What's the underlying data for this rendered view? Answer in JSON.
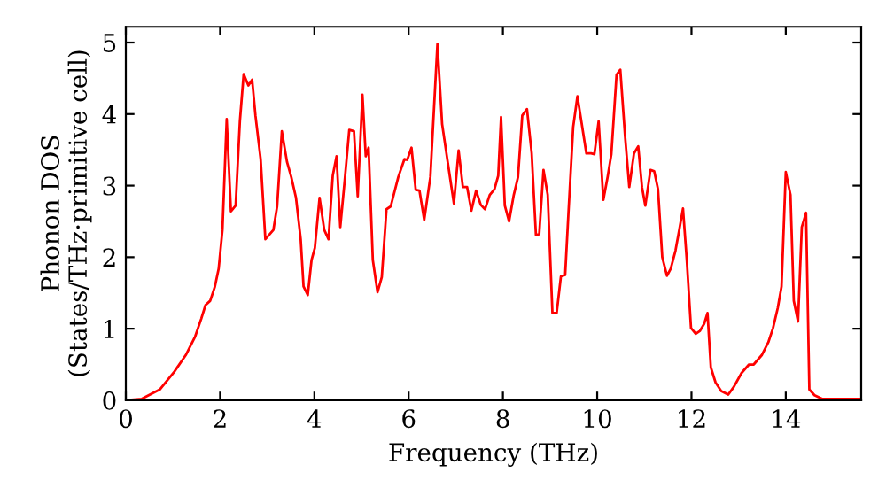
{
  "chart_data": {
    "type": "line",
    "xlabel": "Frequency (THz)",
    "ylabel": "Phonon DOS\n(States/THz·primitive cell)",
    "xlim": [
      0,
      15.6
    ],
    "ylim": [
      0,
      5.22
    ],
    "xticks": [
      0,
      2,
      4,
      6,
      8,
      10,
      12,
      14
    ],
    "yticks": [
      0,
      1,
      2,
      3,
      4,
      5
    ],
    "grid": false,
    "marker": "none",
    "line_style": "solid",
    "series": [
      {
        "color": "#ff0000",
        "x": [
          0,
          0.34,
          0.72,
          1.03,
          1.28,
          1.47,
          1.6,
          1.69,
          1.79,
          1.89,
          1.97,
          2.05,
          2.14,
          2.23,
          2.33,
          2.42,
          2.5,
          2.6,
          2.68,
          2.75,
          2.86,
          2.96,
          3.13,
          3.21,
          3.31,
          3.42,
          3.51,
          3.61,
          3.71,
          3.77,
          3.86,
          3.94,
          4.01,
          4.11,
          4.21,
          4.3,
          4.39,
          4.47,
          4.55,
          4.65,
          4.74,
          4.84,
          4.92,
          5.02,
          5.09,
          5.15,
          5.24,
          5.34,
          5.43,
          5.53,
          5.62,
          5.78,
          5.91,
          5.97,
          6.06,
          6.15,
          6.23,
          6.33,
          6.46,
          6.61,
          6.71,
          6.84,
          6.96,
          7.06,
          7.15,
          7.24,
          7.33,
          7.43,
          7.53,
          7.62,
          7.72,
          7.82,
          7.9,
          7.96,
          8.04,
          8.13,
          8.23,
          8.32,
          8.41,
          8.51,
          8.61,
          8.7,
          8.77,
          8.86,
          8.95,
          9.05,
          9.14,
          9.23,
          9.32,
          9.39,
          9.49,
          9.58,
          9.67,
          9.77,
          9.87,
          9.94,
          10.03,
          10.13,
          10.22,
          10.3,
          10.41,
          10.49,
          10.59,
          10.68,
          10.78,
          10.87,
          10.95,
          11.02,
          11.13,
          11.21,
          11.29,
          11.38,
          11.48,
          11.56,
          11.66,
          11.74,
          11.82,
          11.9,
          11.99,
          12.09,
          12.18,
          12.27,
          12.34,
          12.41,
          12.51,
          12.63,
          12.78,
          12.9,
          13.06,
          13.22,
          13.32,
          13.49,
          13.63,
          13.73,
          13.83,
          13.91,
          14.0,
          14.1,
          14.17,
          14.26,
          14.34,
          14.43,
          14.5,
          14.61,
          14.77,
          15.58
        ],
        "values": [
          0,
          0.02,
          0.15,
          0.4,
          0.64,
          0.89,
          1.14,
          1.33,
          1.39,
          1.59,
          1.84,
          2.38,
          3.93,
          2.64,
          2.72,
          3.9,
          4.56,
          4.4,
          4.48,
          3.98,
          3.37,
          2.25,
          2.38,
          2.71,
          3.76,
          3.33,
          3.12,
          2.83,
          2.25,
          1.59,
          1.47,
          1.96,
          2.13,
          2.83,
          2.38,
          2.25,
          3.14,
          3.41,
          2.42,
          3.12,
          3.78,
          3.76,
          2.85,
          4.27,
          3.41,
          3.53,
          1.96,
          1.51,
          1.72,
          2.67,
          2.71,
          3.12,
          3.37,
          3.36,
          3.53,
          2.94,
          2.93,
          2.52,
          3.12,
          4.98,
          3.86,
          3.28,
          2.75,
          3.49,
          2.98,
          2.98,
          2.65,
          2.93,
          2.73,
          2.67,
          2.87,
          2.95,
          3.14,
          3.96,
          2.72,
          2.5,
          2.87,
          3.12,
          3.98,
          4.07,
          3.45,
          2.31,
          2.32,
          3.22,
          2.87,
          1.22,
          1.22,
          1.73,
          1.75,
          2.62,
          3.82,
          4.25,
          3.87,
          3.45,
          3.45,
          3.44,
          3.9,
          2.8,
          3.12,
          3.44,
          4.55,
          4.62,
          3.7,
          2.98,
          3.45,
          3.55,
          2.98,
          2.72,
          3.22,
          3.2,
          2.95,
          2.0,
          1.74,
          1.84,
          2.09,
          2.38,
          2.68,
          1.96,
          1.01,
          0.93,
          0.97,
          1.07,
          1.22,
          0.46,
          0.25,
          0.13,
          0.08,
          0.19,
          0.38,
          0.5,
          0.5,
          0.63,
          0.81,
          1.01,
          1.29,
          1.59,
          3.19,
          2.87,
          1.39,
          1.1,
          2.42,
          2.62,
          0.15,
          0.07,
          0.02,
          0.02
        ]
      }
    ]
  }
}
